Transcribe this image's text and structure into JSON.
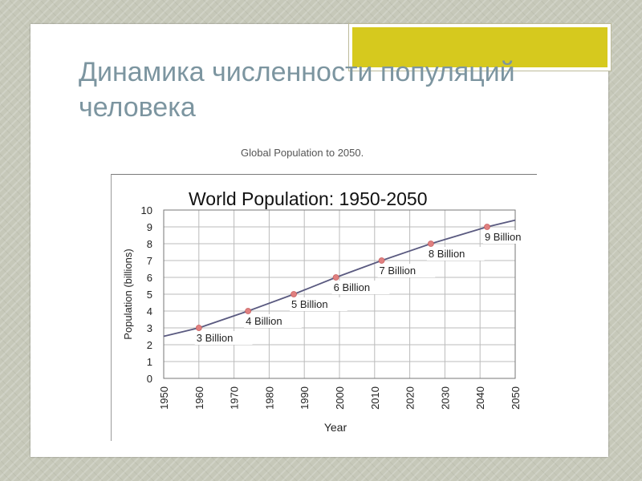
{
  "slide": {
    "title": "Динамика численности популяций человека",
    "caption": "Global Population to 2050."
  },
  "colors": {
    "accent_box": "#d6c91e",
    "title_text": "#7c95a0",
    "line": "#5a5a80",
    "marker": "#e08080",
    "grid": "#bbbbbb"
  },
  "chart_data": {
    "type": "line",
    "title": "World Population: 1950-2050",
    "xlabel": "Year",
    "ylabel": "Population (billions)",
    "xlim": [
      1950,
      2050
    ],
    "ylim": [
      0,
      10
    ],
    "x_ticks": [
      "1950",
      "1960",
      "1970",
      "1980",
      "1990",
      "2000",
      "2010",
      "2020",
      "2030",
      "2040",
      "2050"
    ],
    "y_ticks": [
      "0",
      "1",
      "2",
      "3",
      "4",
      "5",
      "6",
      "7",
      "8",
      "9",
      "10"
    ],
    "grid": true,
    "series": [
      {
        "x": [
          1950,
          1960,
          1974,
          1987,
          1999,
          2012,
          2026,
          2042,
          2050
        ],
        "values": [
          2.5,
          3,
          4,
          5,
          6,
          7,
          8,
          9,
          9.4
        ]
      }
    ],
    "milestones": [
      {
        "x": 1960,
        "y": 3,
        "label": "3 Billion"
      },
      {
        "x": 1974,
        "y": 4,
        "label": "4 Billion"
      },
      {
        "x": 1987,
        "y": 5,
        "label": "5 Billion"
      },
      {
        "x": 1999,
        "y": 6,
        "label": "6 Billion"
      },
      {
        "x": 2012,
        "y": 7,
        "label": "7 Billion"
      },
      {
        "x": 2026,
        "y": 8,
        "label": "8 Billion"
      },
      {
        "x": 2042,
        "y": 9,
        "label": "9 Billion"
      }
    ]
  }
}
